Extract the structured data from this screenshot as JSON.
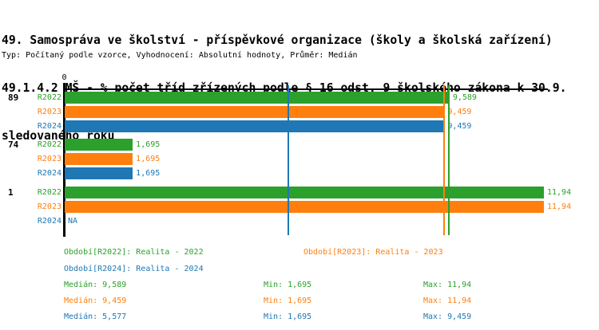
{
  "title": {
    "line1": "49. Samospráva ve školství - příspěvkové organizace (školy a školská zařízení)",
    "line2": "49.1.4.2 MŠ - % počet tříd zřízených podle § 16 odst. 9 školského zákona k 30.9.",
    "line3": "sledovaného roku",
    "subtitle": "Typ: Počítaný podle vzorce, Vyhodnocení: Absolutní hodnoty, Průměr: Medián"
  },
  "chart_data": {
    "type": "bar",
    "orientation": "horizontal",
    "x_tick_label": "0",
    "xlim": [
      0,
      12.02
    ],
    "axis_color": "#000000",
    "grid": false,
    "series": [
      {
        "name": "R2022",
        "label": "Realita - 2022",
        "color": "#2ca02c"
      },
      {
        "name": "R2023",
        "label": "Realita - 2023",
        "color": "#ff7f0e"
      },
      {
        "name": "R2024",
        "label": "Realita - 2024",
        "color": "#1f77b4"
      }
    ],
    "groups": [
      {
        "label": "89",
        "bars": [
          {
            "series": "R2022",
            "value": 9.589,
            "display": "9,589"
          },
          {
            "series": "R2023",
            "value": 9.459,
            "display": "9,459"
          },
          {
            "series": "R2024",
            "value": 9.459,
            "display": "9,459"
          }
        ]
      },
      {
        "label": "74",
        "bars": [
          {
            "series": "R2022",
            "value": 1.695,
            "display": "1,695"
          },
          {
            "series": "R2023",
            "value": 1.695,
            "display": "1,695"
          },
          {
            "series": "R2024",
            "value": 1.695,
            "display": "1,695"
          }
        ]
      },
      {
        "label": "1",
        "bars": [
          {
            "series": "R2022",
            "value": 11.94,
            "display": "11,94"
          },
          {
            "series": "R2023",
            "value": 11.94,
            "display": "11,94"
          },
          {
            "series": "R2024",
            "value": null,
            "display": "NA"
          }
        ]
      }
    ],
    "median_lines": [
      {
        "series": "R2022",
        "value": 9.589
      },
      {
        "series": "R2023",
        "value": 9.459
      },
      {
        "series": "R2024",
        "value": 5.577
      }
    ]
  },
  "legend": {
    "periods": [
      {
        "series": "R2022",
        "text": "Období[R2022]: Realita - 2022"
      },
      {
        "series": "R2023",
        "text": "Období[R2023]: Realita - 2023"
      },
      {
        "series": "R2024",
        "text": "Období[R2024]: Realita - 2024"
      }
    ],
    "stats": [
      {
        "series": "R2022",
        "median": "Medián: 9,589",
        "min": "Min: 1,695",
        "max": "Max: 11,94"
      },
      {
        "series": "R2023",
        "median": "Medián: 9,459",
        "min": "Min: 1,695",
        "max": "Max: 11,94"
      },
      {
        "series": "R2024",
        "median": "Medián: 5,577",
        "min": "Min: 1,695",
        "max": "Max: 9,459"
      }
    ]
  }
}
